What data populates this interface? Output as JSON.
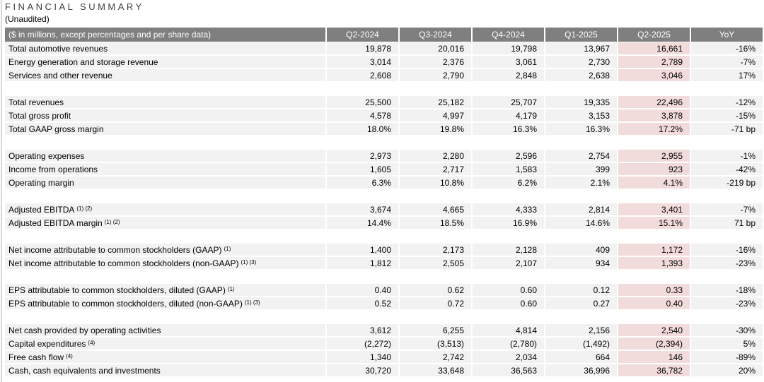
{
  "page": {
    "title": "FINANCIAL SUMMARY",
    "subtitle": "(Unaudited)"
  },
  "colors": {
    "header_bg": "#7f7f7f",
    "header_text": "#ffffff",
    "row_bg": "#f2f2f2",
    "highlight_bg": "#f2dcdb",
    "title_color": "#3f3f3f",
    "left_rule": "#d9d9d9"
  },
  "table": {
    "header": {
      "label": "($ in millions, except percentages and per share data)",
      "columns": [
        "Q2-2024",
        "Q3-2024",
        "Q4-2024",
        "Q1-2025",
        "Q2-2025",
        "YoY"
      ]
    },
    "highlight_column": "Q2-2025",
    "highlight_column_index": 4,
    "groups": [
      {
        "rows": [
          {
            "label": "Total automotive revenues",
            "sup": "",
            "values": [
              "19,878",
              "20,016",
              "19,798",
              "13,967",
              "16,661",
              "-16%"
            ]
          },
          {
            "label": "Energy generation and storage revenue",
            "sup": "",
            "values": [
              "3,014",
              "2,376",
              "3,061",
              "2,730",
              "2,789",
              "-7%"
            ]
          },
          {
            "label": "Services and other revenue",
            "sup": "",
            "values": [
              "2,608",
              "2,790",
              "2,848",
              "2,638",
              "3,046",
              "17%"
            ]
          }
        ]
      },
      {
        "rows": [
          {
            "label": "Total revenues",
            "sup": "",
            "values": [
              "25,500",
              "25,182",
              "25,707",
              "19,335",
              "22,496",
              "-12%"
            ]
          },
          {
            "label": "Total gross profit",
            "sup": "",
            "values": [
              "4,578",
              "4,997",
              "4,179",
              "3,153",
              "3,878",
              "-15%"
            ]
          },
          {
            "label": "Total GAAP gross margin",
            "sup": "",
            "values": [
              "18.0%",
              "19.8%",
              "16.3%",
              "16.3%",
              "17.2%",
              "-71 bp"
            ]
          }
        ]
      },
      {
        "rows": [
          {
            "label": "Operating expenses",
            "sup": "",
            "values": [
              "2,973",
              "2,280",
              "2,596",
              "2,754",
              "2,955",
              "-1%"
            ]
          },
          {
            "label": "Income from operations",
            "sup": "",
            "values": [
              "1,605",
              "2,717",
              "1,583",
              "399",
              "923",
              "-42%"
            ]
          },
          {
            "label": "Operating margin",
            "sup": "",
            "values": [
              "6.3%",
              "10.8%",
              "6.2%",
              "2.1%",
              "4.1%",
              "-219 bp"
            ]
          }
        ]
      },
      {
        "rows": [
          {
            "label": "Adjusted EBITDA",
            "sup": "(1) (2)",
            "values": [
              "3,674",
              "4,665",
              "4,333",
              "2,814",
              "3,401",
              "-7%"
            ]
          },
          {
            "label": "Adjusted EBITDA margin",
            "sup": "(1) (2)",
            "values": [
              "14.4%",
              "18.5%",
              "16.9%",
              "14.6%",
              "15.1%",
              "71 bp"
            ]
          }
        ]
      },
      {
        "rows": [
          {
            "label": "Net income attributable to common stockholders (GAAP)",
            "sup": "(1)",
            "values": [
              "1,400",
              "2,173",
              "2,128",
              "409",
              "1,172",
              "-16%"
            ]
          },
          {
            "label": "Net income attributable to common stockholders (non-GAAP)",
            "sup": "(1) (3)",
            "values": [
              "1,812",
              "2,505",
              "2,107",
              "934",
              "1,393",
              "-23%"
            ]
          }
        ]
      },
      {
        "rows": [
          {
            "label": "EPS attributable to common stockholders, diluted (GAAP)",
            "sup": "(1)",
            "values": [
              "0.40",
              "0.62",
              "0.60",
              "0.12",
              "0.33",
              "-18%"
            ]
          },
          {
            "label": "EPS attributable to common stockholders, diluted (non-GAAP)",
            "sup": "(1) (3)",
            "values": [
              "0.52",
              "0.72",
              "0.60",
              "0.27",
              "0.40",
              "-23%"
            ]
          }
        ]
      },
      {
        "rows": [
          {
            "label": "Net cash provided by operating activities",
            "sup": "",
            "values": [
              "3,612",
              "6,255",
              "4,814",
              "2,156",
              "2,540",
              "-30%"
            ]
          },
          {
            "label": "Capital expenditures",
            "sup": "(4)",
            "values": [
              "(2,272)",
              "(3,513)",
              "(2,780)",
              "(1,492)",
              "(2,394)",
              "5%"
            ]
          },
          {
            "label": "Free cash flow",
            "sup": "(4)",
            "values": [
              "1,340",
              "2,742",
              "2,034",
              "664",
              "146",
              "-89%"
            ]
          },
          {
            "label": "Cash, cash equivalents and investments",
            "sup": "",
            "values": [
              "30,720",
              "33,648",
              "36,563",
              "36,996",
              "36,782",
              "20%"
            ]
          }
        ]
      }
    ]
  }
}
